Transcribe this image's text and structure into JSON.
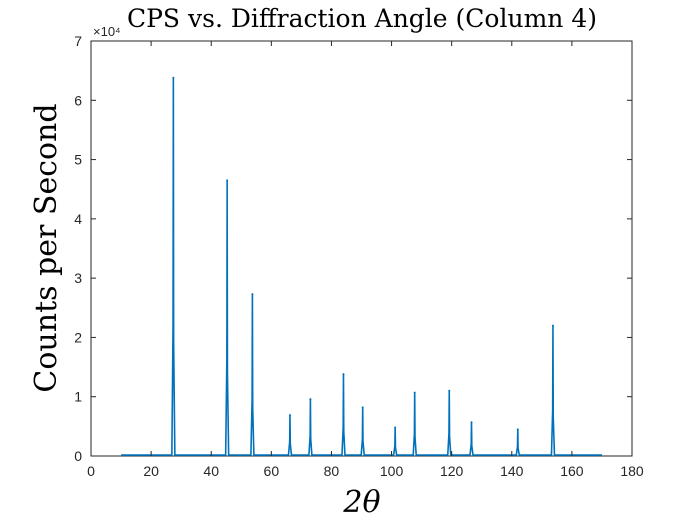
{
  "chart_data": {
    "type": "line",
    "title": "CPS vs. Diffraction Angle (Column 4)",
    "xlabel": "2θ",
    "ylabel": "Counts per Second",
    "xlim": [
      0,
      180
    ],
    "ylim": [
      0,
      70000
    ],
    "x_ticks": [
      0,
      20,
      40,
      60,
      80,
      100,
      120,
      140,
      160,
      180
    ],
    "y_ticks": [
      0,
      1,
      2,
      3,
      4,
      5,
      6,
      7
    ],
    "y_exponent_label": "×10⁴",
    "line_color": "#0072BD",
    "grid": false,
    "x_range_data": [
      10,
      170
    ],
    "baseline": 150,
    "peaks": [
      {
        "x": 27.4,
        "y": 63800
      },
      {
        "x": 45.3,
        "y": 46500
      },
      {
        "x": 53.7,
        "y": 27300
      },
      {
        "x": 66.2,
        "y": 6900
      },
      {
        "x": 73.0,
        "y": 9600
      },
      {
        "x": 84.0,
        "y": 13800
      },
      {
        "x": 90.4,
        "y": 8200
      },
      {
        "x": 101.2,
        "y": 4800
      },
      {
        "x": 107.7,
        "y": 10700
      },
      {
        "x": 119.2,
        "y": 11000
      },
      {
        "x": 126.6,
        "y": 5700
      },
      {
        "x": 142.0,
        "y": 4500
      },
      {
        "x": 153.7,
        "y": 22000
      }
    ]
  }
}
